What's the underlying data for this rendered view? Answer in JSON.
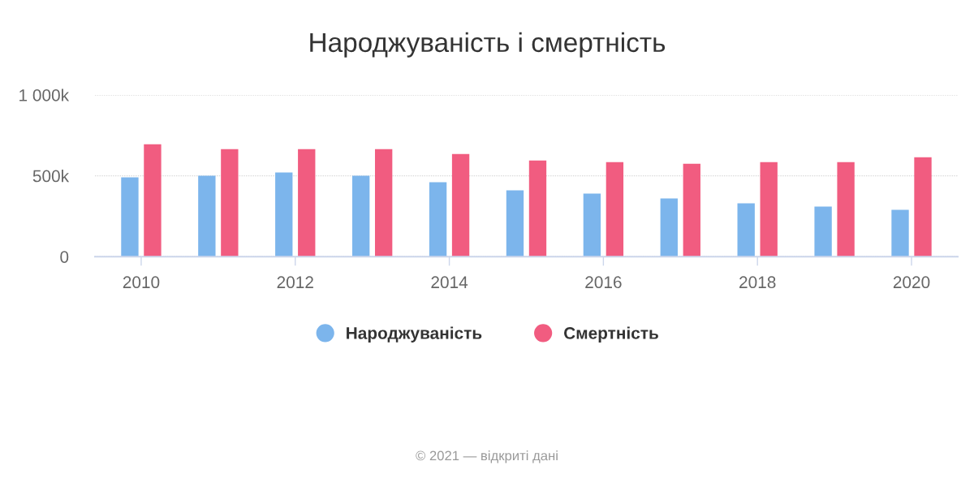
{
  "chart_data": {
    "type": "bar",
    "title": "Народжуваність і смертність",
    "x": [
      2010,
      2011,
      2012,
      2013,
      2014,
      2015,
      2016,
      2017,
      2018,
      2019,
      2020
    ],
    "series": [
      {
        "name": "Народжуваність",
        "color": "#7cb5ec",
        "values": [
          490000,
          500000,
          520000,
          500000,
          460000,
          410000,
          390000,
          360000,
          330000,
          310000,
          290000
        ]
      },
      {
        "name": "Смертність",
        "color": "#f15c80",
        "values": [
          695000,
          665000,
          665000,
          665000,
          635000,
          595000,
          585000,
          575000,
          585000,
          585000,
          615000
        ]
      }
    ],
    "xlim": [
      2009.4,
      2020.6
    ],
    "xticks": [
      2010,
      2012,
      2014,
      2016,
      2018,
      2020
    ],
    "ylim": [
      0,
      1000000
    ],
    "yticks": [
      0,
      {
        "value": 500000,
        "label": "500k"
      },
      {
        "value": 1000000,
        "label": "1 000k"
      }
    ],
    "grid": "y",
    "legend": "bottom",
    "annotations": [
      "© 2021 — відкриті дані"
    ]
  }
}
